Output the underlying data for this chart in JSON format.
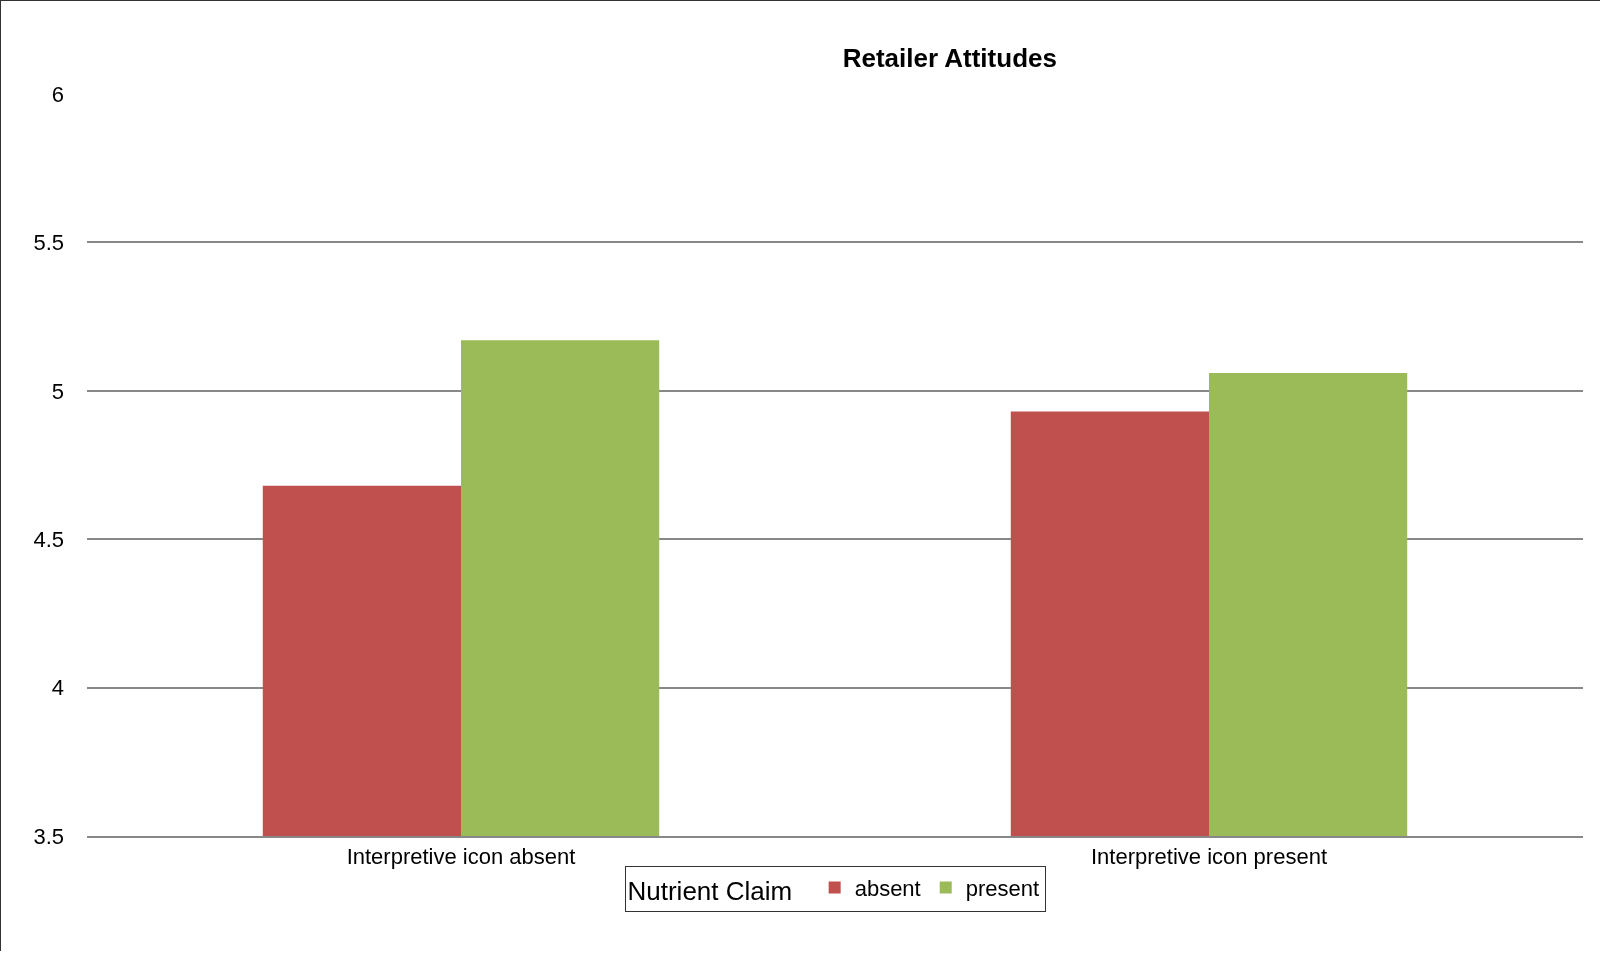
{
  "chart_data": {
    "type": "bar",
    "title": "Retailer Attitudes",
    "categories": [
      "Interpretive icon absent",
      "Interpretive icon present"
    ],
    "series": [
      {
        "name": "absent",
        "color": "#c0504d",
        "values": [
          4.68,
          4.93
        ]
      },
      {
        "name": "present",
        "color": "#9bbb59",
        "values": [
          5.17,
          5.06
        ]
      }
    ],
    "legend_title": "Nutrient Claim",
    "legend": "bottom",
    "ylim": [
      3.5,
      6
    ],
    "yticks": [
      3.5,
      4,
      4.5,
      5,
      5.5,
      6
    ],
    "grid": "y"
  }
}
